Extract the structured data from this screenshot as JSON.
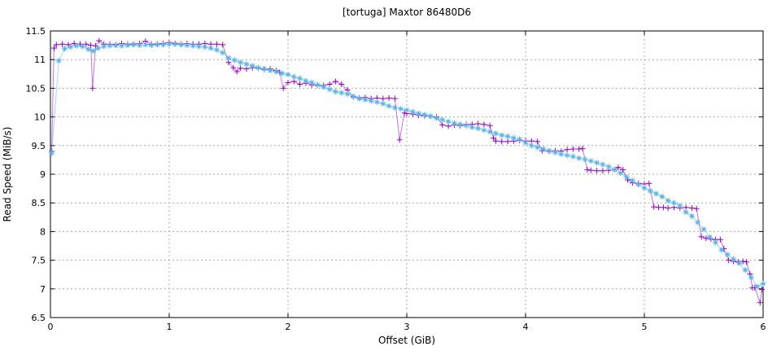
{
  "chart_data": {
    "type": "line",
    "title": "[tortuga] Maxtor 86480D6",
    "xlabel": "Offset (GiB)",
    "ylabel": "Read Speed (MiB/s)",
    "xlim": [
      0,
      6
    ],
    "ylim": [
      6.5,
      11.5
    ],
    "xticks": [
      "0",
      "1",
      "2",
      "3",
      "4",
      "5",
      "6"
    ],
    "yticks": [
      "6.5",
      "7",
      "7.5",
      "8",
      "8.5",
      "9",
      "9.5",
      "10",
      "10.5",
      "11",
      "11.5"
    ],
    "grid": true,
    "legend": "none",
    "colors": {
      "grid": "#a8a8a8",
      "axis": "#000000",
      "purple_series": "#9400d3",
      "blue_series": "#56b4e9"
    },
    "series": [
      {
        "name": "purple-plus-series",
        "color": "#9400d3",
        "marker": "plus",
        "points": [
          [
            0.01,
            9.4
          ],
          [
            0.03,
            11.2
          ],
          [
            0.05,
            11.26
          ],
          [
            0.1,
            11.27
          ],
          [
            0.15,
            11.26
          ],
          [
            0.2,
            11.28
          ],
          [
            0.25,
            11.27
          ],
          [
            0.3,
            11.27
          ],
          [
            0.34,
            11.25
          ],
          [
            0.355,
            10.5
          ],
          [
            0.38,
            11.24
          ],
          [
            0.41,
            11.33
          ],
          [
            0.45,
            11.27
          ],
          [
            0.5,
            11.27
          ],
          [
            0.55,
            11.26
          ],
          [
            0.6,
            11.28
          ],
          [
            0.65,
            11.27
          ],
          [
            0.7,
            11.27
          ],
          [
            0.75,
            11.28
          ],
          [
            0.8,
            11.32
          ],
          [
            0.85,
            11.27
          ],
          [
            0.9,
            11.27
          ],
          [
            0.95,
            11.28
          ],
          [
            1.0,
            11.3
          ],
          [
            1.05,
            11.28
          ],
          [
            1.1,
            11.27
          ],
          [
            1.15,
            11.28
          ],
          [
            1.2,
            11.27
          ],
          [
            1.25,
            11.27
          ],
          [
            1.3,
            11.28
          ],
          [
            1.35,
            11.27
          ],
          [
            1.4,
            11.27
          ],
          [
            1.45,
            11.26
          ],
          [
            1.5,
            10.95
          ],
          [
            1.54,
            10.86
          ],
          [
            1.57,
            10.79
          ],
          [
            1.6,
            10.85
          ],
          [
            1.65,
            10.84
          ],
          [
            1.7,
            10.86
          ],
          [
            1.75,
            10.85
          ],
          [
            1.8,
            10.83
          ],
          [
            1.85,
            10.84
          ],
          [
            1.9,
            10.81
          ],
          [
            1.93,
            10.78
          ],
          [
            1.96,
            10.5
          ],
          [
            2.0,
            10.6
          ],
          [
            2.05,
            10.62
          ],
          [
            2.1,
            10.57
          ],
          [
            2.15,
            10.59
          ],
          [
            2.2,
            10.56
          ],
          [
            2.25,
            10.55
          ],
          [
            2.3,
            10.55
          ],
          [
            2.35,
            10.57
          ],
          [
            2.4,
            10.62
          ],
          [
            2.45,
            10.57
          ],
          [
            2.5,
            10.47
          ],
          [
            2.55,
            10.35
          ],
          [
            2.6,
            10.33
          ],
          [
            2.65,
            10.34
          ],
          [
            2.7,
            10.32
          ],
          [
            2.75,
            10.33
          ],
          [
            2.8,
            10.32
          ],
          [
            2.85,
            10.33
          ],
          [
            2.9,
            10.32
          ],
          [
            2.94,
            9.6
          ],
          [
            2.98,
            10.07
          ],
          [
            3.0,
            10.06
          ],
          [
            3.05,
            10.05
          ],
          [
            3.1,
            10.03
          ],
          [
            3.15,
            10.02
          ],
          [
            3.2,
            10.01
          ],
          [
            3.25,
            10.0
          ],
          [
            3.3,
            9.86
          ],
          [
            3.35,
            9.84
          ],
          [
            3.4,
            9.86
          ],
          [
            3.45,
            9.85
          ],
          [
            3.5,
            9.87
          ],
          [
            3.55,
            9.87
          ],
          [
            3.6,
            9.88
          ],
          [
            3.65,
            9.87
          ],
          [
            3.7,
            9.85
          ],
          [
            3.73,
            9.63
          ],
          [
            3.75,
            9.58
          ],
          [
            3.8,
            9.57
          ],
          [
            3.85,
            9.57
          ],
          [
            3.9,
            9.58
          ],
          [
            3.95,
            9.59
          ],
          [
            4.0,
            9.58
          ],
          [
            4.05,
            9.58
          ],
          [
            4.1,
            9.57
          ],
          [
            4.14,
            9.41
          ],
          [
            4.2,
            9.4
          ],
          [
            4.25,
            9.41
          ],
          [
            4.3,
            9.4
          ],
          [
            4.35,
            9.43
          ],
          [
            4.4,
            9.44
          ],
          [
            4.45,
            9.44
          ],
          [
            4.48,
            9.45
          ],
          [
            4.52,
            9.08
          ],
          [
            4.55,
            9.07
          ],
          [
            4.6,
            9.06
          ],
          [
            4.65,
            9.06
          ],
          [
            4.7,
            9.07
          ],
          [
            4.75,
            9.08
          ],
          [
            4.78,
            9.12
          ],
          [
            4.82,
            9.08
          ],
          [
            4.86,
            8.9
          ],
          [
            4.9,
            8.85
          ],
          [
            4.95,
            8.84
          ],
          [
            5.0,
            8.83
          ],
          [
            5.04,
            8.84
          ],
          [
            5.08,
            8.43
          ],
          [
            5.12,
            8.42
          ],
          [
            5.16,
            8.42
          ],
          [
            5.2,
            8.41
          ],
          [
            5.25,
            8.42
          ],
          [
            5.3,
            8.41
          ],
          [
            5.35,
            8.42
          ],
          [
            5.4,
            8.41
          ],
          [
            5.44,
            8.4
          ],
          [
            5.48,
            7.91
          ],
          [
            5.52,
            7.88
          ],
          [
            5.56,
            7.87
          ],
          [
            5.6,
            7.86
          ],
          [
            5.64,
            7.86
          ],
          [
            5.67,
            7.7
          ],
          [
            5.71,
            7.5
          ],
          [
            5.75,
            7.48
          ],
          [
            5.79,
            7.47
          ],
          [
            5.83,
            7.48
          ],
          [
            5.86,
            7.47
          ],
          [
            5.89,
            7.26
          ],
          [
            5.91,
            7.02
          ],
          [
            5.93,
            7.02
          ],
          [
            5.975,
            6.76
          ],
          [
            5.99,
            6.99
          ]
        ]
      },
      {
        "name": "blue-asterisk-series",
        "color": "#56b4e9",
        "marker": "asterisk",
        "points": [
          [
            0.01,
            9.37
          ],
          [
            0.07,
            10.98
          ],
          [
            0.12,
            11.19
          ],
          [
            0.17,
            11.22
          ],
          [
            0.22,
            11.24
          ],
          [
            0.27,
            11.23
          ],
          [
            0.32,
            11.18
          ],
          [
            0.36,
            11.15
          ],
          [
            0.4,
            11.2
          ],
          [
            0.45,
            11.23
          ],
          [
            0.5,
            11.24
          ],
          [
            0.55,
            11.25
          ],
          [
            0.6,
            11.24
          ],
          [
            0.65,
            11.25
          ],
          [
            0.7,
            11.26
          ],
          [
            0.75,
            11.25
          ],
          [
            0.8,
            11.26
          ],
          [
            0.85,
            11.25
          ],
          [
            0.9,
            11.26
          ],
          [
            0.95,
            11.26
          ],
          [
            1.0,
            11.27
          ],
          [
            1.05,
            11.27
          ],
          [
            1.1,
            11.26
          ],
          [
            1.15,
            11.25
          ],
          [
            1.2,
            11.24
          ],
          [
            1.25,
            11.23
          ],
          [
            1.3,
            11.22
          ],
          [
            1.35,
            11.2
          ],
          [
            1.4,
            11.17
          ],
          [
            1.45,
            11.12
          ],
          [
            1.5,
            11.03
          ],
          [
            1.55,
            10.99
          ],
          [
            1.6,
            10.95
          ],
          [
            1.65,
            10.92
          ],
          [
            1.7,
            10.89
          ],
          [
            1.75,
            10.86
          ],
          [
            1.8,
            10.84
          ],
          [
            1.85,
            10.81
          ],
          [
            1.9,
            10.79
          ],
          [
            1.95,
            10.76
          ],
          [
            2.0,
            10.74
          ],
          [
            2.05,
            10.7
          ],
          [
            2.1,
            10.67
          ],
          [
            2.15,
            10.63
          ],
          [
            2.2,
            10.6
          ],
          [
            2.25,
            10.56
          ],
          [
            2.3,
            10.52
          ],
          [
            2.35,
            10.48
          ],
          [
            2.4,
            10.44
          ],
          [
            2.45,
            10.42
          ],
          [
            2.5,
            10.4
          ],
          [
            2.55,
            10.36
          ],
          [
            2.6,
            10.32
          ],
          [
            2.65,
            10.3
          ],
          [
            2.7,
            10.28
          ],
          [
            2.75,
            10.26
          ],
          [
            2.8,
            10.23
          ],
          [
            2.85,
            10.19
          ],
          [
            2.9,
            10.16
          ],
          [
            2.95,
            10.14
          ],
          [
            3.0,
            10.12
          ],
          [
            3.05,
            10.09
          ],
          [
            3.1,
            10.06
          ],
          [
            3.15,
            10.04
          ],
          [
            3.2,
            10.01
          ],
          [
            3.25,
            9.98
          ],
          [
            3.3,
            9.95
          ],
          [
            3.35,
            9.92
          ],
          [
            3.4,
            9.89
          ],
          [
            3.45,
            9.87
          ],
          [
            3.5,
            9.85
          ],
          [
            3.55,
            9.82
          ],
          [
            3.6,
            9.8
          ],
          [
            3.65,
            9.77
          ],
          [
            3.7,
            9.74
          ],
          [
            3.75,
            9.71
          ],
          [
            3.8,
            9.68
          ],
          [
            3.85,
            9.66
          ],
          [
            3.9,
            9.63
          ],
          [
            3.95,
            9.61
          ],
          [
            4.0,
            9.55
          ],
          [
            4.05,
            9.5
          ],
          [
            4.1,
            9.47
          ],
          [
            4.15,
            9.44
          ],
          [
            4.2,
            9.41
          ],
          [
            4.25,
            9.38
          ],
          [
            4.3,
            9.35
          ],
          [
            4.35,
            9.33
          ],
          [
            4.4,
            9.31
          ],
          [
            4.45,
            9.28
          ],
          [
            4.5,
            9.26
          ],
          [
            4.55,
            9.23
          ],
          [
            4.6,
            9.2
          ],
          [
            4.65,
            9.17
          ],
          [
            4.7,
            9.13
          ],
          [
            4.75,
            9.08
          ],
          [
            4.8,
            9.02
          ],
          [
            4.85,
            8.95
          ],
          [
            4.9,
            8.89
          ],
          [
            4.95,
            8.82
          ],
          [
            5.0,
            8.76
          ],
          [
            5.05,
            8.71
          ],
          [
            5.1,
            8.66
          ],
          [
            5.15,
            8.61
          ],
          [
            5.2,
            8.54
          ],
          [
            5.25,
            8.5
          ],
          [
            5.3,
            8.45
          ],
          [
            5.35,
            8.34
          ],
          [
            5.4,
            8.27
          ],
          [
            5.45,
            8.16
          ],
          [
            5.5,
            8.04
          ],
          [
            5.55,
            7.9
          ],
          [
            5.6,
            7.81
          ],
          [
            5.65,
            7.68
          ],
          [
            5.7,
            7.6
          ],
          [
            5.75,
            7.52
          ],
          [
            5.8,
            7.45
          ],
          [
            5.85,
            7.33
          ],
          [
            5.9,
            7.2
          ],
          [
            5.95,
            7.04
          ],
          [
            6.0,
            7.09
          ]
        ]
      }
    ]
  }
}
